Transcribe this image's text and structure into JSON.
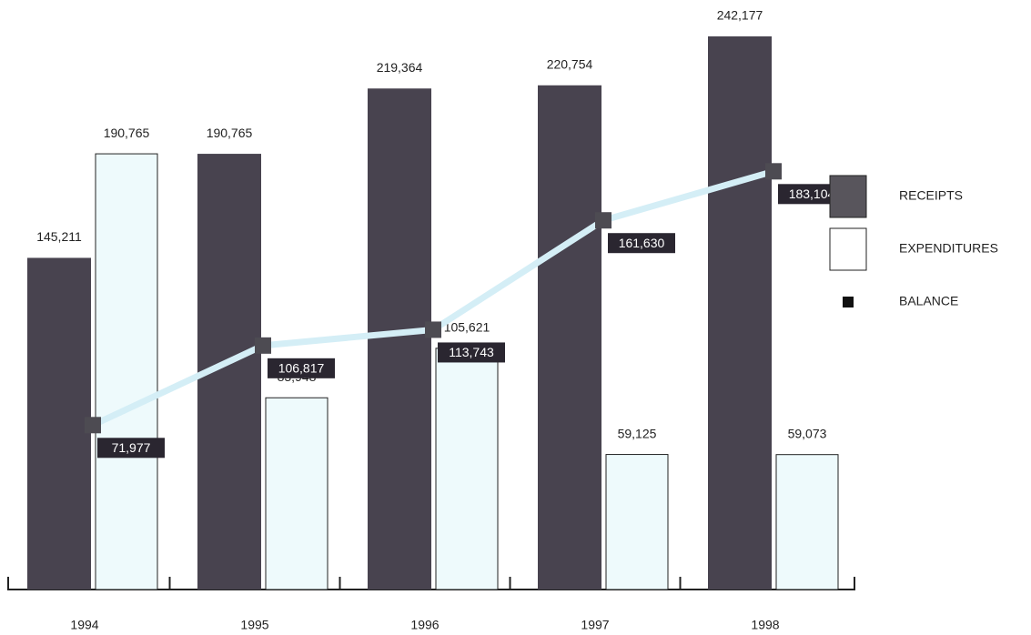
{
  "chart_data": {
    "type": "bar",
    "categories": [
      "1994",
      "1995",
      "1996",
      "1997",
      "1998"
    ],
    "series": [
      {
        "name": "RECEIPTS",
        "color": "#48434f",
        "values": [
          145211,
          190765,
          219364,
          220754,
          242177
        ],
        "value_labels": [
          "145,211",
          "190,765",
          "219,364",
          "220,754",
          "242,177"
        ]
      },
      {
        "name": "EXPENDITURES",
        "color": "#eefafc",
        "values": [
          190765,
          83948,
          105621,
          59125,
          59073
        ],
        "value_labels": [
          "190,765",
          "83,948",
          "105,621",
          "59,125",
          "59,073"
        ]
      },
      {
        "name": "BALANCE",
        "type": "line",
        "color": "#d4eef6",
        "values": [
          71977,
          106817,
          113743,
          161630,
          183104
        ],
        "value_labels": [
          "71,977",
          "106,817",
          "113,743",
          "161,630",
          "183,104"
        ]
      }
    ],
    "legend": "right"
  }
}
